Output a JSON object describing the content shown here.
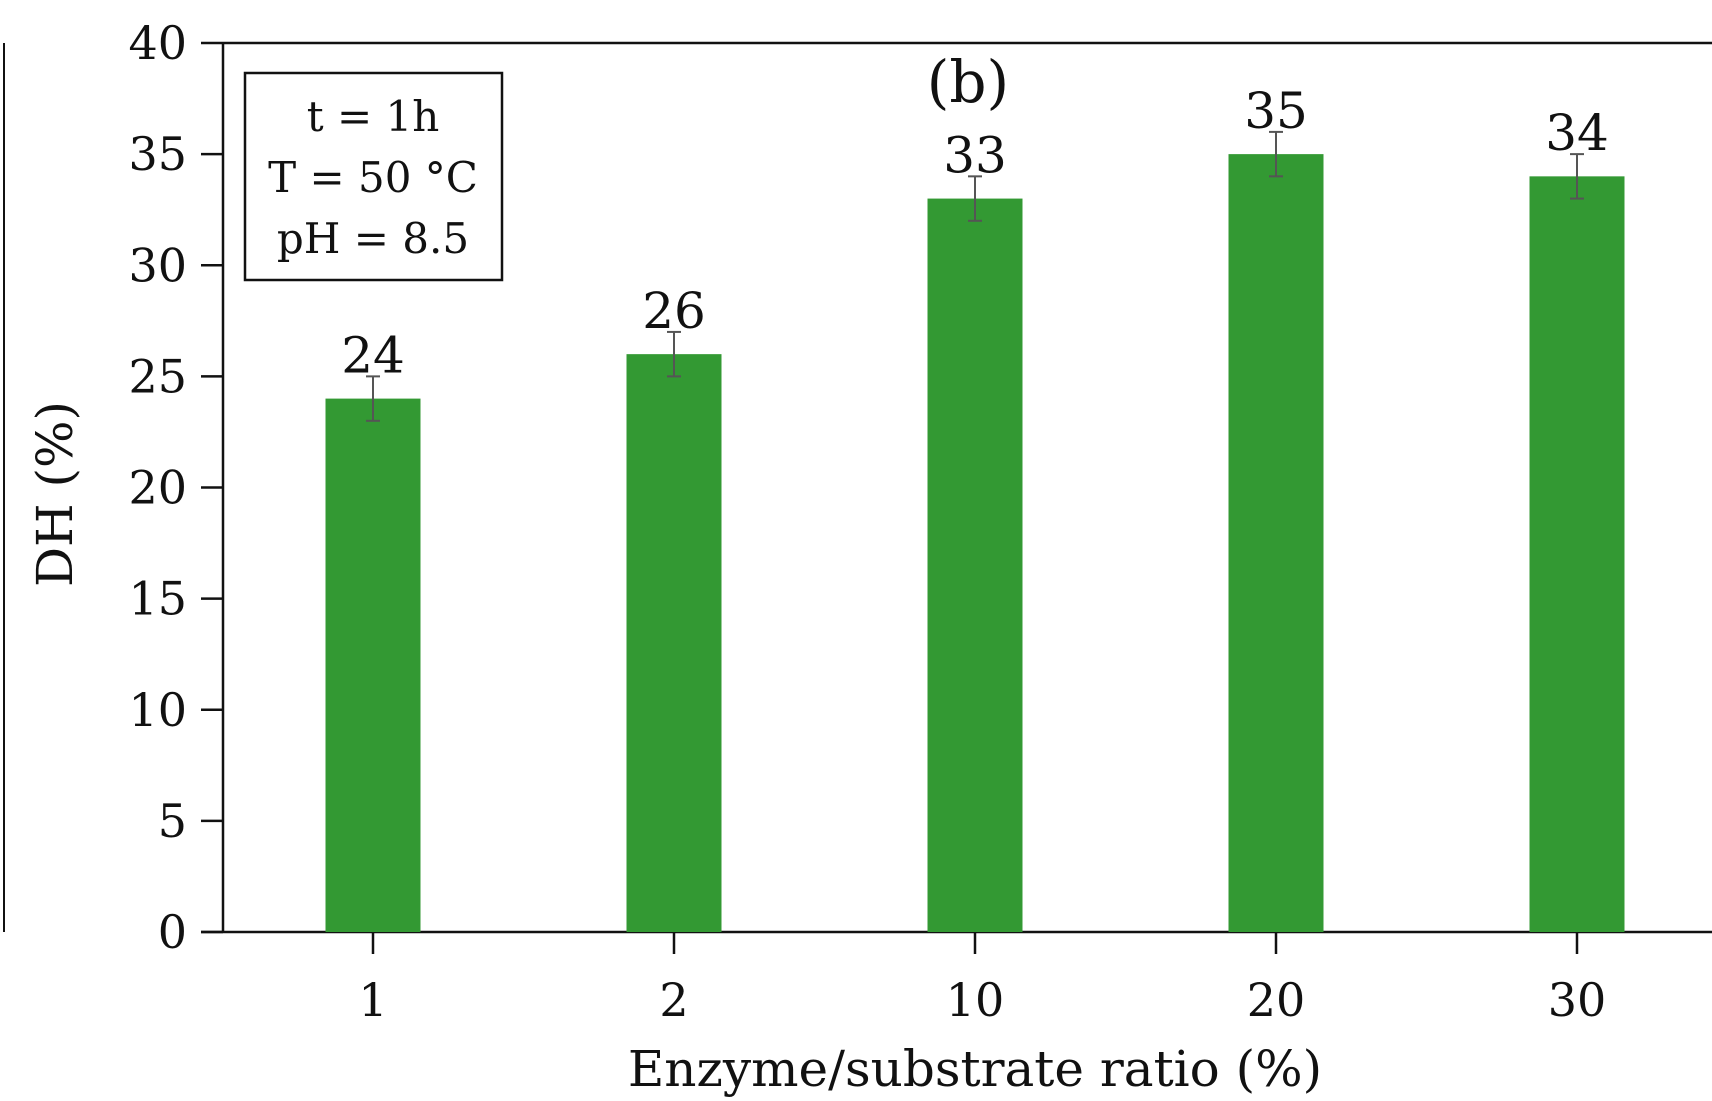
{
  "chart_data": {
    "type": "bar",
    "panel_label": "(b)",
    "categories": [
      "1",
      "2",
      "10",
      "20",
      "30"
    ],
    "values": [
      24,
      26,
      33,
      35,
      34
    ],
    "errors": [
      1,
      1,
      1,
      1,
      1
    ],
    "data_labels": [
      "24",
      "26",
      "33",
      "35",
      "34"
    ],
    "xlabel": "Enzyme/substrate ratio (%)",
    "ylabel": "DH (%)",
    "ylim": [
      0,
      40
    ],
    "yticks": [
      0,
      5,
      10,
      15,
      20,
      25,
      30,
      35,
      40
    ],
    "grid": false,
    "bar_color": "#339933",
    "error_bar_color": "#555555",
    "annotation": {
      "lines": [
        "t = 1h",
        "T = 50 °C",
        "pH = 8.5"
      ],
      "placement": "top-left"
    }
  }
}
